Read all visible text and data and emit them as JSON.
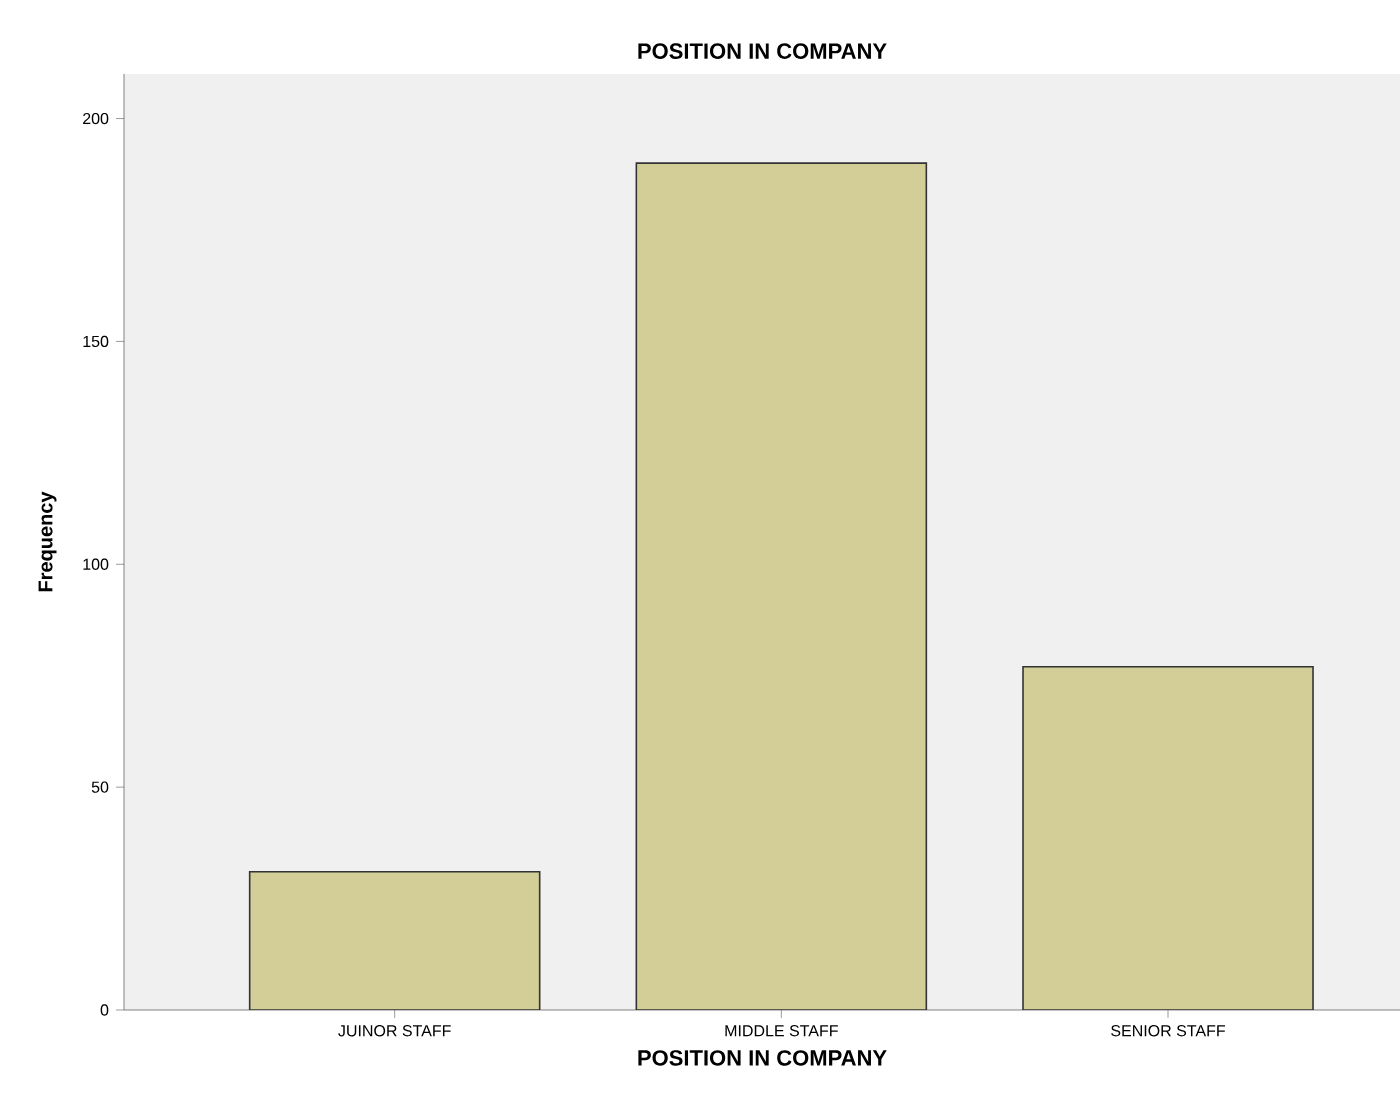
{
  "chart_data": {
    "type": "bar",
    "title": "POSITION IN COMPANY",
    "xlabel": "POSITION IN COMPANY",
    "ylabel": "Frequency",
    "categories": [
      "JUINOR STAFF",
      "MIDDLE STAFF",
      "SENIOR STAFF"
    ],
    "values": [
      31,
      190,
      77
    ],
    "color": "#d3ce97",
    "ylim": [
      0,
      210
    ],
    "yticks": [
      0,
      50,
      100,
      150,
      200
    ],
    "grid": false
  }
}
